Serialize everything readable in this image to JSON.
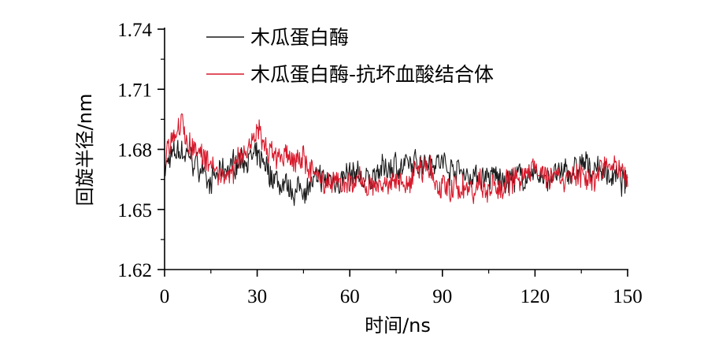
{
  "chart_data": {
    "type": "line",
    "xlabel": "时间/ns",
    "ylabel": "回旋半径/nm",
    "xlim": [
      0,
      150
    ],
    "ylim": [
      1.62,
      1.74
    ],
    "xticks": [
      "0",
      "30",
      "60",
      "90",
      "120",
      "150"
    ],
    "yticks": [
      "1.62",
      "1.65",
      "1.68",
      "1.71",
      "1.74"
    ],
    "legend_position": "top-left",
    "grid": false,
    "series": [
      {
        "name": "木瓜蛋白酶",
        "color": "#1a1a1a",
        "x": [
          0,
          5,
          10,
          15,
          20,
          25,
          30,
          35,
          40,
          45,
          50,
          55,
          60,
          65,
          70,
          75,
          80,
          85,
          90,
          95,
          100,
          105,
          110,
          115,
          120,
          125,
          130,
          135,
          140,
          145,
          150
        ],
        "y": [
          1.672,
          1.679,
          1.673,
          1.664,
          1.669,
          1.676,
          1.675,
          1.666,
          1.658,
          1.661,
          1.664,
          1.665,
          1.666,
          1.665,
          1.669,
          1.672,
          1.671,
          1.676,
          1.673,
          1.67,
          1.666,
          1.666,
          1.665,
          1.666,
          1.666,
          1.666,
          1.668,
          1.671,
          1.671,
          1.667,
          1.662
        ]
      },
      {
        "name": "木瓜蛋白酶-抗坏血酸结合体",
        "color": "#d7192b",
        "x": [
          0,
          5,
          10,
          15,
          20,
          25,
          30,
          35,
          40,
          45,
          50,
          55,
          60,
          65,
          70,
          75,
          80,
          85,
          90,
          95,
          100,
          105,
          110,
          115,
          120,
          125,
          130,
          135,
          140,
          145,
          150
        ],
        "y": [
          1.676,
          1.692,
          1.68,
          1.671,
          1.663,
          1.678,
          1.69,
          1.676,
          1.677,
          1.673,
          1.664,
          1.665,
          1.663,
          1.663,
          1.664,
          1.664,
          1.665,
          1.668,
          1.66,
          1.661,
          1.662,
          1.66,
          1.663,
          1.665,
          1.67,
          1.666,
          1.666,
          1.667,
          1.667,
          1.671,
          1.667
        ]
      }
    ]
  }
}
